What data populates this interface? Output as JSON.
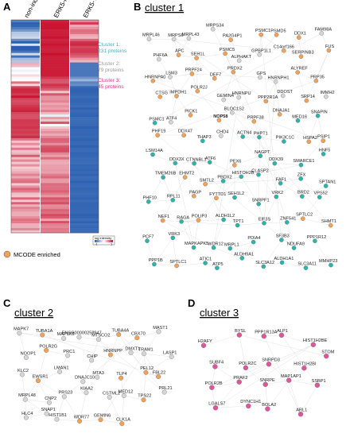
{
  "panels": {
    "a": {
      "letter": "A"
    },
    "b": {
      "letter": "B",
      "title": "cluster 1"
    },
    "c": {
      "letter": "C",
      "title": "cluster 2"
    },
    "d": {
      "letter": "D",
      "title": "cluster 3"
    }
  },
  "heatmap": {
    "columns": [
      "non-induced",
      "ERK5-FL",
      "ERK5-T732E"
    ],
    "cluster_notes": [
      {
        "lines": [
          "Cluster 1:",
          "231 proteins"
        ],
        "color": "#3bb8c0"
      },
      {
        "lines": [
          "Cluster 2:",
          "79 proteins"
        ],
        "color": "#9a9a9a"
      },
      {
        "lines": [
          "Cluster 3:",
          "45 proteins"
        ],
        "color": "#e0338a"
      }
    ],
    "scale": {
      "title": "log intensity",
      "min": "-1",
      "max": "1"
    }
  },
  "legend": {
    "label": "MCODE enriched",
    "color": "#f2a155"
  },
  "colors": {
    "teal": "#29b5aa",
    "orange": "#f2a155",
    "grey": "#d6d6d6",
    "pink": "#e0559a",
    "edge": "#c9c9c9"
  },
  "networks": {
    "cluster1": [
      {
        "id": "MRPL46",
        "t": "g"
      },
      {
        "id": "MRPS6",
        "t": "g"
      },
      {
        "id": "MRPL43",
        "t": "g"
      },
      {
        "id": "MRPS34",
        "t": "g"
      },
      {
        "id": "PA2G4P1",
        "t": "o"
      },
      {
        "id": "PSMC1",
        "t": "o"
      },
      {
        "id": "PSMD5",
        "t": "o"
      },
      {
        "id": "DDX1",
        "t": "o"
      },
      {
        "id": "FAM98A",
        "t": "g"
      },
      {
        "id": "PHF6A",
        "t": "g"
      },
      {
        "id": "APC",
        "t": "o"
      },
      {
        "id": "SEH1L",
        "t": "o"
      },
      {
        "id": "PSMC5",
        "t": "o"
      },
      {
        "id": "ALPHAKT",
        "t": "g"
      },
      {
        "id": "GPBP1L1",
        "t": "g"
      },
      {
        "id": "C14orf166",
        "t": "o"
      },
      {
        "id": "SERPINB3",
        "t": "o"
      },
      {
        "id": "FUS",
        "t": "o"
      },
      {
        "id": "HNRNPA0",
        "t": "o"
      },
      {
        "id": "LSM3",
        "t": "g"
      },
      {
        "id": "PRPF24",
        "t": "o"
      },
      {
        "id": "DEF7",
        "t": "o"
      },
      {
        "id": "PRDX2",
        "t": "o"
      },
      {
        "id": "GPS",
        "t": "g"
      },
      {
        "id": "HNRNPH1",
        "t": "g"
      },
      {
        "id": "ALYREF",
        "t": "o"
      },
      {
        "id": "PRP35",
        "t": "o"
      },
      {
        "id": "CTSG",
        "t": "o"
      },
      {
        "id": "IMPDH1",
        "t": "o"
      },
      {
        "id": "POLR2J",
        "t": "o"
      },
      {
        "id": "GEMIN4",
        "t": "g"
      },
      {
        "id": "HNRNPU",
        "t": "g"
      },
      {
        "id": "PPP2R1A",
        "t": "o"
      },
      {
        "id": "DDOST",
        "t": "g"
      },
      {
        "id": "SRP14",
        "t": "o"
      },
      {
        "id": "IMMH2",
        "t": "g"
      },
      {
        "id": "PSMC1b",
        "t": "t",
        "label": "PSMC1"
      },
      {
        "id": "ATF4",
        "t": "g"
      },
      {
        "id": "PICK1",
        "t": "o"
      },
      {
        "id": "NOP58",
        "t": "o",
        "bold": true
      },
      {
        "id": "BLOC1S2",
        "t": "g"
      },
      {
        "id": "PRPF38",
        "t": "o"
      },
      {
        "id": "DNAJA1",
        "t": "o"
      },
      {
        "id": "MED16",
        "t": "t"
      },
      {
        "id": "SNAPIN",
        "t": "t"
      },
      {
        "id": "PHF19",
        "t": "o"
      },
      {
        "id": "DDX47",
        "t": "o"
      },
      {
        "id": "THAP3",
        "t": "t"
      },
      {
        "id": "CHD4",
        "t": "g"
      },
      {
        "id": "ACTN4",
        "t": "t"
      },
      {
        "id": "PHPT1",
        "t": "t"
      },
      {
        "id": "PIK3C1C",
        "t": "t"
      },
      {
        "id": "HSPA2",
        "t": "o"
      },
      {
        "id": "PSIP1",
        "t": "o"
      },
      {
        "id": "LSM14A",
        "t": "t"
      },
      {
        "id": "DDX3X",
        "t": "t"
      },
      {
        "id": "CTNNBL1",
        "t": "t"
      },
      {
        "id": "ATF6",
        "t": "t"
      },
      {
        "id": "PEX6",
        "t": "o"
      },
      {
        "id": "NAGPT",
        "t": "t"
      },
      {
        "id": "DDX39",
        "t": "t"
      },
      {
        "id": "SMARCE1",
        "t": "t"
      },
      {
        "id": "HNF5",
        "t": "t"
      },
      {
        "id": "TMEM26B",
        "t": "t"
      },
      {
        "id": "EHMT2",
        "t": "o"
      },
      {
        "id": "SMTL2",
        "t": "o"
      },
      {
        "id": "PBDX2",
        "t": "t"
      },
      {
        "id": "HISTOH2B",
        "t": "t"
      },
      {
        "id": "CLASP2",
        "t": "t"
      },
      {
        "id": "FAF1",
        "t": "t"
      },
      {
        "id": "ZFX",
        "t": "t"
      },
      {
        "id": "SPTAN1",
        "t": "t"
      },
      {
        "id": "PHF10",
        "t": "t"
      },
      {
        "id": "RPL11",
        "t": "t"
      },
      {
        "id": "PAGP",
        "t": "o"
      },
      {
        "id": "FYTTD1",
        "t": "o"
      },
      {
        "id": "SEH1L2",
        "t": "t"
      },
      {
        "id": "SNRPF1",
        "t": "t"
      },
      {
        "id": "VRK2",
        "t": "t"
      },
      {
        "id": "BRD2",
        "t": "t"
      },
      {
        "id": "VPS52",
        "t": "t"
      },
      {
        "id": "NEF1",
        "t": "o"
      },
      {
        "id": "RAGA",
        "t": "t"
      },
      {
        "id": "POLIP3",
        "t": "o"
      },
      {
        "id": "ALDH1L2",
        "t": "t"
      },
      {
        "id": "TPT1",
        "t": "t"
      },
      {
        "id": "EIF3S",
        "t": "t"
      },
      {
        "id": "ZNF541",
        "t": "t"
      },
      {
        "id": "SPTLC2",
        "t": "o"
      },
      {
        "id": "SHMT1",
        "t": "o"
      },
      {
        "id": "PCF7",
        "t": "t"
      },
      {
        "id": "VRK3",
        "t": "t"
      },
      {
        "id": "MAPKAPK5",
        "t": "t"
      },
      {
        "id": "WDR12",
        "t": "t"
      },
      {
        "id": "MRPL1",
        "t": "t"
      },
      {
        "id": "PDIA4",
        "t": "t"
      },
      {
        "id": "SF3B3",
        "t": "t"
      },
      {
        "id": "NDUFA9",
        "t": "t"
      },
      {
        "id": "PPP1R12",
        "t": "t"
      },
      {
        "id": "PPP1B",
        "t": "t"
      },
      {
        "id": "SPTLC1",
        "t": "o"
      },
      {
        "id": "ATIC1",
        "t": "t"
      },
      {
        "id": "ATP5",
        "t": "t"
      },
      {
        "id": "ALDH9A1",
        "t": "t"
      },
      {
        "id": "SLC3A12",
        "t": "t"
      },
      {
        "id": "ALDH1A1",
        "t": "t"
      },
      {
        "id": "SLC3A11",
        "t": "t"
      },
      {
        "id": "MMHP23",
        "t": "t"
      }
    ],
    "cluster2": [
      {
        "id": "MAPK7",
        "t": "g",
        "red": true
      },
      {
        "id": "TUBA1A",
        "t": "o"
      },
      {
        "id": "MAP1K5",
        "t": "g"
      },
      {
        "id": "ENSG00000258947",
        "t": "g"
      },
      {
        "id": "MTSCO2",
        "t": "g"
      },
      {
        "id": "TUBA4A",
        "t": "o"
      },
      {
        "id": "CBX70",
        "t": "o"
      },
      {
        "id": "MAST1",
        "t": "g"
      },
      {
        "id": "NOOP1",
        "t": "g"
      },
      {
        "id": "POLR2G",
        "t": "o"
      },
      {
        "id": "PRC1",
        "t": "g"
      },
      {
        "id": "CHIP",
        "t": "g"
      },
      {
        "id": "HNRNPP",
        "t": "o"
      },
      {
        "id": "DMXT1",
        "t": "g"
      },
      {
        "id": "TRAM1",
        "t": "g"
      },
      {
        "id": "LASP1",
        "t": "g"
      },
      {
        "id": "KLC2",
        "t": "g"
      },
      {
        "id": "EWSR1",
        "t": "o"
      },
      {
        "id": "LMAN1",
        "t": "g"
      },
      {
        "id": "DNAJC10",
        "t": "g"
      },
      {
        "id": "MTA3",
        "t": "g"
      },
      {
        "id": "TLP4",
        "t": "o"
      },
      {
        "id": "PEL12",
        "t": "o"
      },
      {
        "id": "FBL22",
        "t": "o"
      },
      {
        "id": "MRPL48",
        "t": "g"
      },
      {
        "id": "CNP2",
        "t": "g"
      },
      {
        "id": "PRS23",
        "t": "g"
      },
      {
        "id": "KIAA2",
        "t": "g"
      },
      {
        "id": "CSTML2",
        "t": "g"
      },
      {
        "id": "MED12",
        "t": "g"
      },
      {
        "id": "TPS22",
        "t": "o"
      },
      {
        "id": "PRL21",
        "t": "g"
      },
      {
        "id": "HLC4",
        "t": "g"
      },
      {
        "id": "SNAP1",
        "t": "g"
      },
      {
        "id": "HIST1B1",
        "t": "g"
      },
      {
        "id": "WDR77",
        "t": "o"
      },
      {
        "id": "GEMIN6",
        "t": "o"
      },
      {
        "id": "CLK1A",
        "t": "o"
      }
    ],
    "cluster3": [
      {
        "id": "H2AFY",
        "t": "p"
      },
      {
        "id": "BYSL",
        "t": "p"
      },
      {
        "id": "PPP1R13A",
        "t": "p"
      },
      {
        "id": "ALP1",
        "t": "p"
      },
      {
        "id": "HIST1H2BE",
        "t": "p"
      },
      {
        "id": "SUBF4",
        "t": "p"
      },
      {
        "id": "POLR2C",
        "t": "p"
      },
      {
        "id": "SNRPD3",
        "t": "p"
      },
      {
        "id": "HIST1H2BI",
        "t": "p"
      },
      {
        "id": "STOM",
        "t": "p"
      },
      {
        "id": "POLR2B",
        "t": "p"
      },
      {
        "id": "PRAF2",
        "t": "p"
      },
      {
        "id": "SNRPE",
        "t": "p"
      },
      {
        "id": "MAP1AP1",
        "t": "p"
      },
      {
        "id": "SSBP1",
        "t": "p"
      },
      {
        "id": "LGALS7",
        "t": "p"
      },
      {
        "id": "DYNC1H1",
        "t": "p"
      },
      {
        "id": "BOLA2",
        "t": "p"
      },
      {
        "id": "ARL1",
        "t": "p"
      }
    ]
  }
}
